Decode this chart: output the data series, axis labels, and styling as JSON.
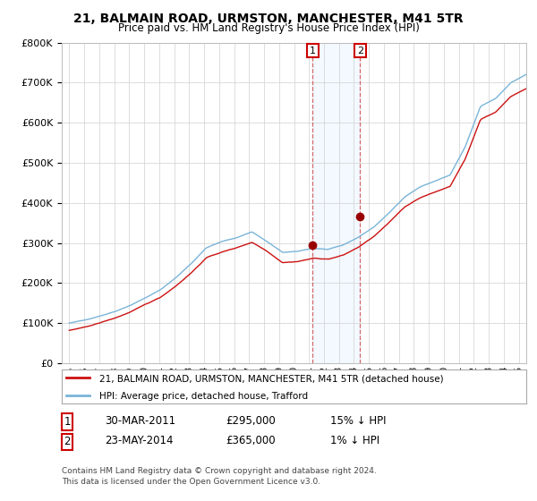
{
  "title": "21, BALMAIN ROAD, URMSTON, MANCHESTER, M41 5TR",
  "subtitle": "Price paid vs. HM Land Registry's House Price Index (HPI)",
  "legend_line1": "21, BALMAIN ROAD, URMSTON, MANCHESTER, M41 5TR (detached house)",
  "legend_line2": "HPI: Average price, detached house, Trafford",
  "annotation1_date": "30-MAR-2011",
  "annotation1_price": "£295,000",
  "annotation1_hpi": "15% ↓ HPI",
  "annotation2_date": "23-MAY-2014",
  "annotation2_price": "£365,000",
  "annotation2_hpi": "1% ↓ HPI",
  "footer": "Contains HM Land Registry data © Crown copyright and database right 2024.\nThis data is licensed under the Open Government Licence v3.0.",
  "hpi_color": "#7ab4d8",
  "price_color": "#cc1111",
  "marker_color": "#990000",
  "highlight_color": "#ddeeff",
  "annotation_box_color": "#cc0000",
  "ylim": [
    0,
    800000
  ],
  "yticks": [
    0,
    100000,
    200000,
    300000,
    400000,
    500000,
    600000,
    700000,
    800000
  ],
  "sale1_x": 2011.25,
  "sale1_y": 295000,
  "sale2_x": 2014.42,
  "sale2_y": 365000,
  "xmin": 1994.5,
  "xmax": 2025.5
}
